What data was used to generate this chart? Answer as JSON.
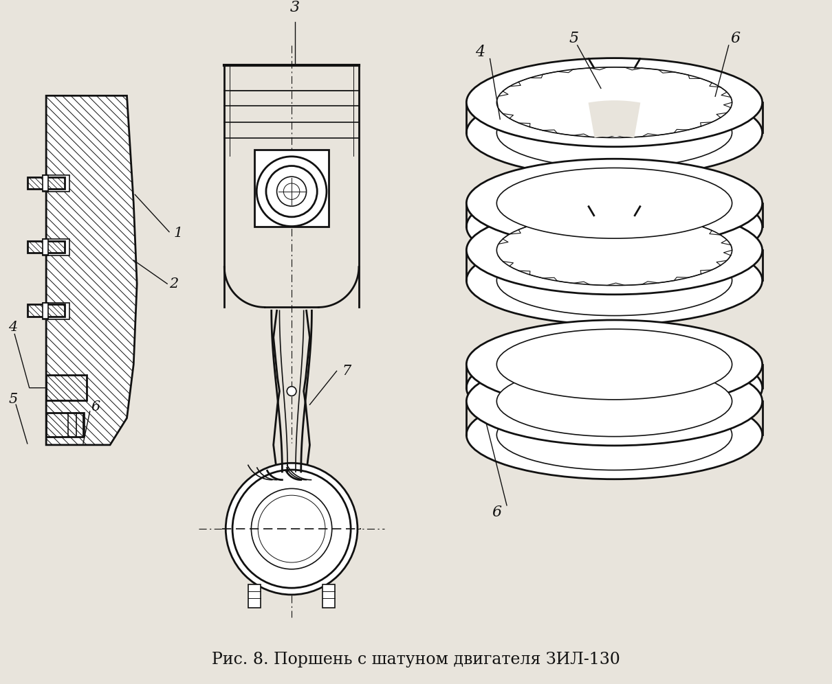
{
  "title": "Рис. 8. Поршень с шатуном двигателя ЗИЛ-130",
  "title_fontsize": 17,
  "bg_color": "#e8e4dc",
  "line_color": "#111111",
  "label_color": "#111111",
  "fig_w": 12.1,
  "fig_h": 9.96
}
